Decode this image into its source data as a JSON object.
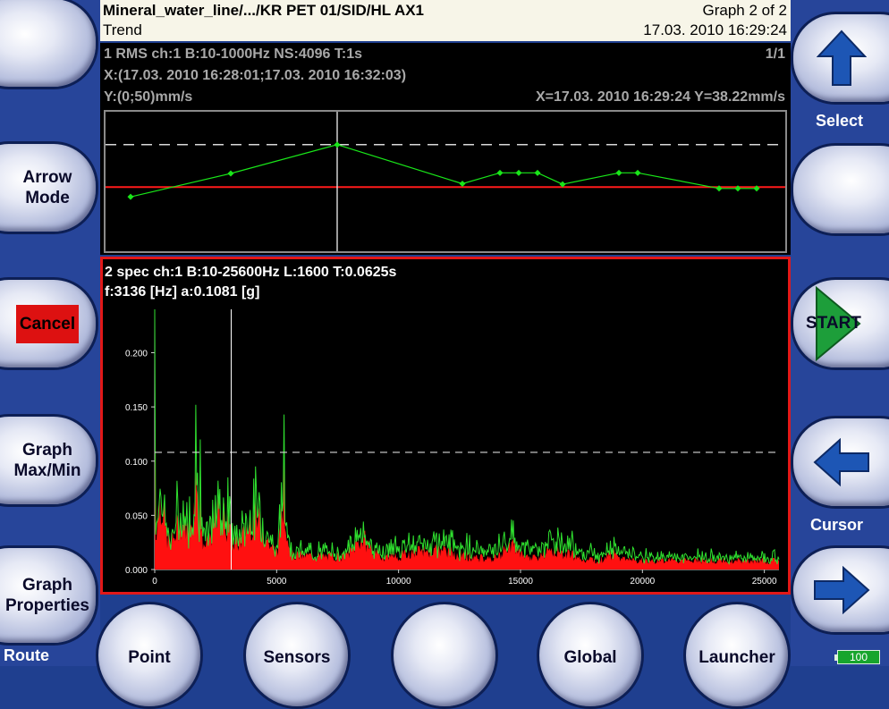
{
  "header": {
    "path": "Mineral_water_line/.../KR PET 01/SID/HL AX1",
    "mode": "Trend",
    "graph_index": "Graph 2 of 2",
    "datetime": "17.03. 2010 16:29:24"
  },
  "left_buttons": {
    "arrow_mode": "Arrow\nMode",
    "cancel": "Cancel",
    "graph_maxmin": "Graph\nMax/Min",
    "graph_properties": "Graph\nProperties",
    "route_label": "Route"
  },
  "right_buttons": {
    "select_label": "Select",
    "start": "START",
    "cursor_label": "Cursor"
  },
  "bottom_buttons": [
    "Point",
    "Sensors",
    "",
    "Global",
    "Launcher"
  ],
  "battery": "100",
  "trend": {
    "line1": "1 RMS ch:1 B:10-1000Hz NS:4096 T:1s",
    "page": "1/1",
    "line2": "X:(17.03. 2010 16:28:01;17.03. 2010 16:32:03)",
    "line3": "Y:(0;50)mm/s",
    "cursor": "X=17.03. 2010 16:29:24 Y=38.22mm/s"
  },
  "spectrum": {
    "line1": "2 spec ch:1 B:10-25600Hz L:1600 T:0.0625s",
    "line2": "f:3136 [Hz] a:0.1081 [g]"
  },
  "chart_data": [
    {
      "type": "line",
      "title": "1 RMS ch:1 B:10-1000Hz NS:4096 T:1s",
      "x_range": [
        "17.03. 2010 16:28:01",
        "17.03. 2010 16:32:03"
      ],
      "ylim": [
        0,
        50
      ],
      "yunit": "mm/s",
      "points_y": [
        19.5,
        27.9,
        38.2,
        24.2,
        28.1,
        28.1,
        28.1,
        24.0,
        28.1,
        28.1,
        22.5,
        22.5,
        22.5
      ],
      "reference_dashed_y": 38.22,
      "reference_red_y": 23.0,
      "cursor": {
        "x": "17.03. 2010 16:29:24",
        "y": 38.22
      },
      "series_color": "#19e619"
    },
    {
      "type": "area",
      "title": "2 spec ch:1 B:10-25600Hz L:1600 T:0.0625s",
      "x_ticks": [
        0,
        5000,
        10000,
        15000,
        20000,
        25000
      ],
      "y_ticks": [
        "0.000",
        "0.050",
        "0.100",
        "0.150",
        "0.200"
      ],
      "xlim": [
        0,
        25600
      ],
      "ylim": [
        0,
        0.24
      ],
      "cursor": {
        "f": 3136,
        "a": 0.1081
      },
      "dashed_level": 0.1081,
      "peaks": [
        {
          "f": 0,
          "a": 0.24
        },
        {
          "f": 1700,
          "a": 0.152
        },
        {
          "f": 1850,
          "a": 0.12
        },
        {
          "f": 3000,
          "a": 0.085
        },
        {
          "f": 5300,
          "a": 0.143
        },
        {
          "f": 8500,
          "a": 0.025
        },
        {
          "f": 14500,
          "a": 0.02
        },
        {
          "f": 18800,
          "a": 0.01
        }
      ]
    }
  ]
}
